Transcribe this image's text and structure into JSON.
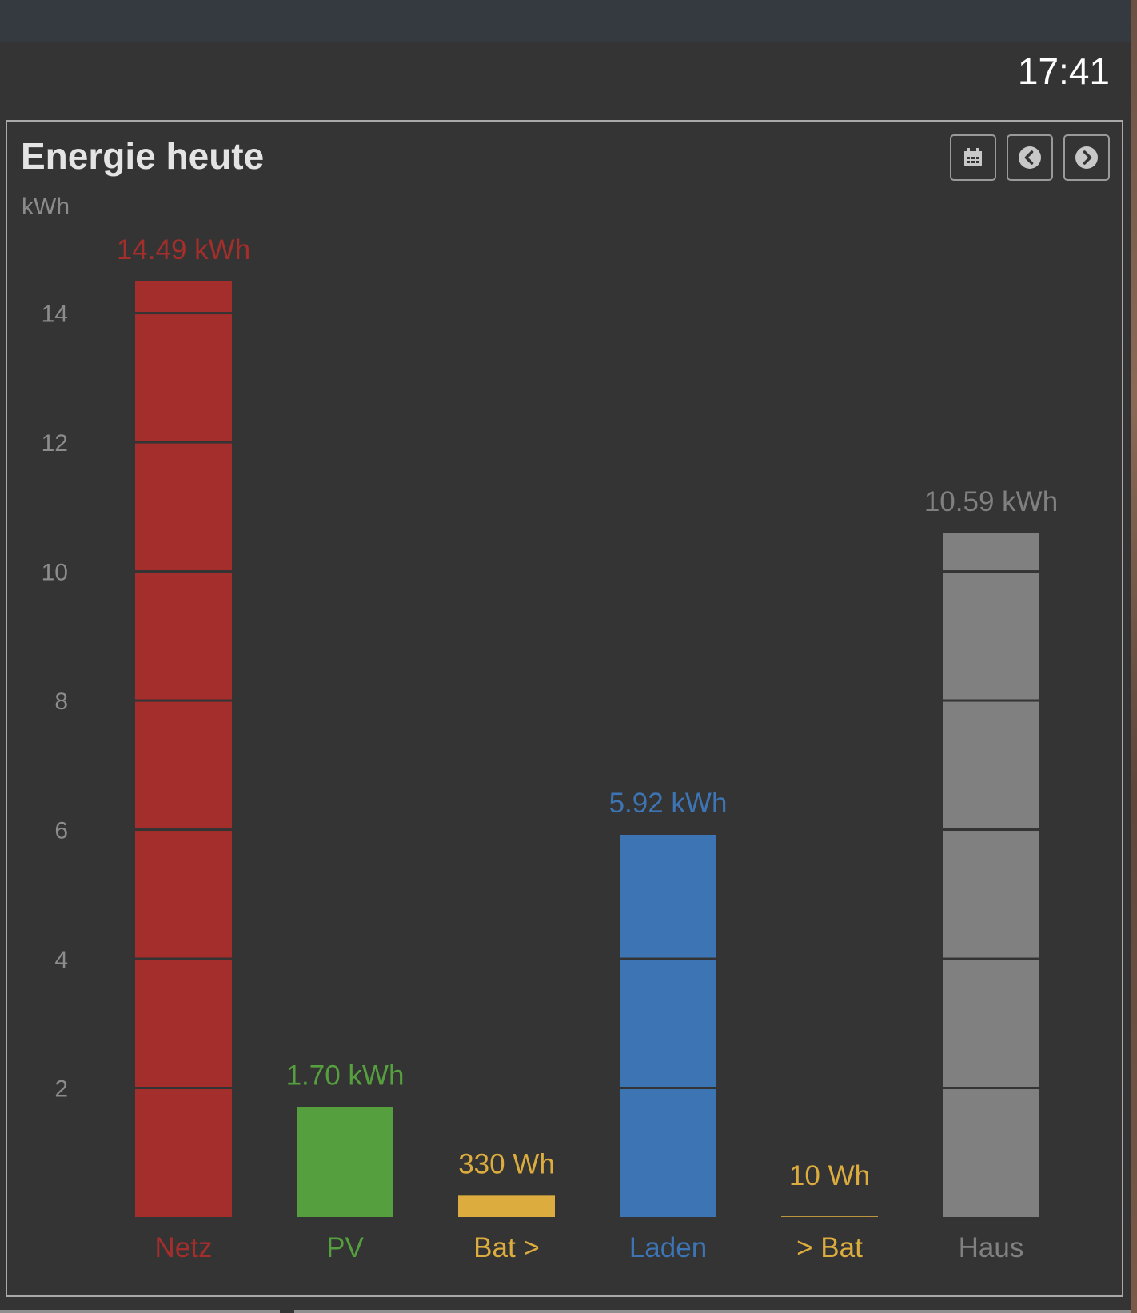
{
  "header": {
    "time": "17:41"
  },
  "panel": {
    "title": "Energie heute",
    "unit": "kWh",
    "buttons": [
      {
        "name": "calendar-button",
        "icon": "calendar-icon"
      },
      {
        "name": "previous-button",
        "icon": "chevron-left-icon"
      },
      {
        "name": "next-button",
        "icon": "chevron-right-icon"
      }
    ]
  },
  "chart_data": {
    "type": "bar",
    "ylabel": "kWh",
    "ylim": [
      0,
      14.49
    ],
    "yticks": [
      2,
      4,
      6,
      8,
      10,
      12,
      14
    ],
    "grid": false,
    "categories": [
      "Netz",
      "PV",
      "Bat >",
      "Laden",
      "> Bat",
      "Haus"
    ],
    "values": [
      14.49,
      1.7,
      0.33,
      5.92,
      0.01,
      10.59
    ],
    "value_labels": [
      "14.49 kWh",
      "1.70 kWh",
      "330 Wh",
      "5.92 kWh",
      "10 Wh",
      "10.59 kWh"
    ],
    "colors": [
      "#a32e2b",
      "#559f3e",
      "#dcac3e",
      "#3d74b3",
      "#dcac3e",
      "#808080"
    ],
    "segment_step": 2
  }
}
